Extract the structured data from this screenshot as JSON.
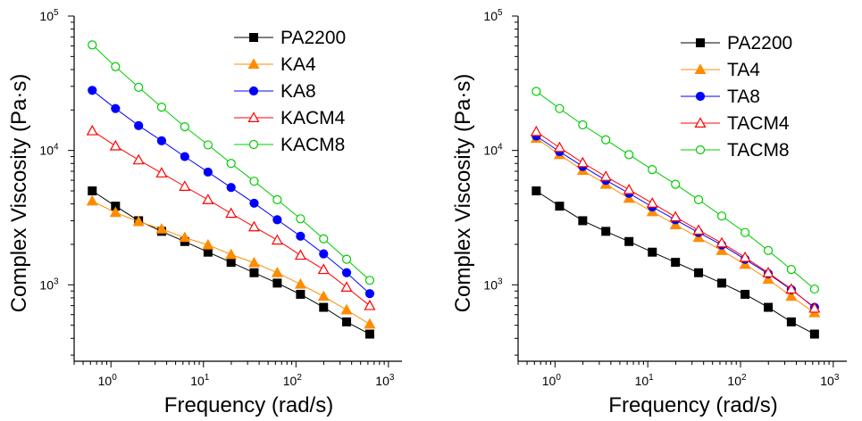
{
  "chart_data": [
    {
      "type": "line",
      "xlabel": "Frequency (rad/s)",
      "ylabel": "Complex Viscosity (Pa·s)",
      "xscale": "log",
      "yscale": "log",
      "xlim": [
        0.4,
        1400
      ],
      "ylim": [
        270,
        100000
      ],
      "x_ticks": [
        {
          "value": 1,
          "base": "10",
          "exp": "0"
        },
        {
          "value": 10,
          "base": "10",
          "exp": "1"
        },
        {
          "value": 100,
          "base": "10",
          "exp": "2"
        },
        {
          "value": 1000,
          "base": "10",
          "exp": "3"
        }
      ],
      "y_ticks": [
        {
          "value": 1000,
          "base": "10",
          "exp": "3"
        },
        {
          "value": 10000,
          "base": "10",
          "exp": "4"
        },
        {
          "value": 100000,
          "base": "10",
          "exp": "5"
        }
      ],
      "grid": false,
      "legend_position": "top-right",
      "x": [
        0.628,
        1.12,
        1.99,
        3.53,
        6.28,
        11.2,
        19.9,
        35.3,
        62.8,
        112,
        199,
        353,
        628
      ],
      "series": [
        {
          "name": "PA2200",
          "marker": "square",
          "filled": true,
          "color": "#000000",
          "values": [
            5000,
            3850,
            3000,
            2500,
            2100,
            1750,
            1470,
            1230,
            1030,
            850,
            680,
            530,
            430
          ]
        },
        {
          "name": "KA4",
          "marker": "triangle",
          "filled": true,
          "color": "#ff8c00",
          "values": [
            4200,
            3450,
            2950,
            2600,
            2250,
            1980,
            1680,
            1460,
            1230,
            1010,
            820,
            650,
            510
          ]
        },
        {
          "name": "KA8",
          "marker": "circle",
          "filled": true,
          "color": "#0000ff",
          "values": [
            28000,
            20500,
            15300,
            11800,
            9000,
            6900,
            5300,
            4050,
            3050,
            2300,
            1700,
            1230,
            860
          ]
        },
        {
          "name": "KACM4",
          "marker": "triangle",
          "filled": false,
          "color": "#ff0000",
          "values": [
            14000,
            10800,
            8500,
            6800,
            5400,
            4300,
            3400,
            2700,
            2150,
            1660,
            1300,
            960,
            700
          ]
        },
        {
          "name": "KACM8",
          "marker": "circle",
          "filled": false,
          "color": "#00cc00",
          "values": [
            61000,
            42000,
            29500,
            21000,
            15000,
            11000,
            8000,
            5900,
            4300,
            3100,
            2200,
            1550,
            1080
          ]
        }
      ]
    },
    {
      "type": "line",
      "xlabel": "Frequency (rad/s)",
      "ylabel": "Complex Viscosity (Pa·s)",
      "xscale": "log",
      "yscale": "log",
      "xlim": [
        0.4,
        1400
      ],
      "ylim": [
        270,
        100000
      ],
      "x_ticks": [
        {
          "value": 1,
          "base": "10",
          "exp": "0"
        },
        {
          "value": 10,
          "base": "10",
          "exp": "1"
        },
        {
          "value": 100,
          "base": "10",
          "exp": "2"
        },
        {
          "value": 1000,
          "base": "10",
          "exp": "3"
        }
      ],
      "y_ticks": [
        {
          "value": 1000,
          "base": "10",
          "exp": "3"
        },
        {
          "value": 10000,
          "base": "10",
          "exp": "4"
        },
        {
          "value": 100000,
          "base": "10",
          "exp": "5"
        }
      ],
      "grid": false,
      "legend_position": "top-right",
      "x": [
        0.628,
        1.12,
        1.99,
        3.53,
        6.28,
        11.2,
        19.9,
        35.3,
        62.8,
        112,
        199,
        353,
        628
      ],
      "series": [
        {
          "name": "PA2200",
          "marker": "square",
          "filled": true,
          "color": "#000000",
          "values": [
            5000,
            3850,
            3000,
            2500,
            2100,
            1750,
            1470,
            1230,
            1030,
            850,
            680,
            530,
            430
          ]
        },
        {
          "name": "TA4",
          "marker": "triangle",
          "filled": true,
          "color": "#ff8c00",
          "values": [
            12300,
            9300,
            7100,
            5600,
            4400,
            3500,
            2800,
            2250,
            1800,
            1420,
            1100,
            820,
            620
          ]
        },
        {
          "name": "TA8",
          "marker": "circle",
          "filled": true,
          "color": "#0000ff",
          "values": [
            12800,
            9800,
            7600,
            6000,
            4800,
            3800,
            3050,
            2450,
            1980,
            1550,
            1210,
            920,
            680
          ]
        },
        {
          "name": "TACM4",
          "marker": "triangle",
          "filled": false,
          "color": "#ff0000",
          "values": [
            13800,
            10500,
            8100,
            6400,
            5100,
            4050,
            3200,
            2550,
            2050,
            1600,
            1230,
            930,
            670
          ]
        },
        {
          "name": "TACM8",
          "marker": "circle",
          "filled": false,
          "color": "#00cc00",
          "values": [
            27500,
            20500,
            15500,
            12000,
            9300,
            7200,
            5600,
            4300,
            3250,
            2450,
            1800,
            1300,
            930
          ]
        }
      ]
    }
  ]
}
